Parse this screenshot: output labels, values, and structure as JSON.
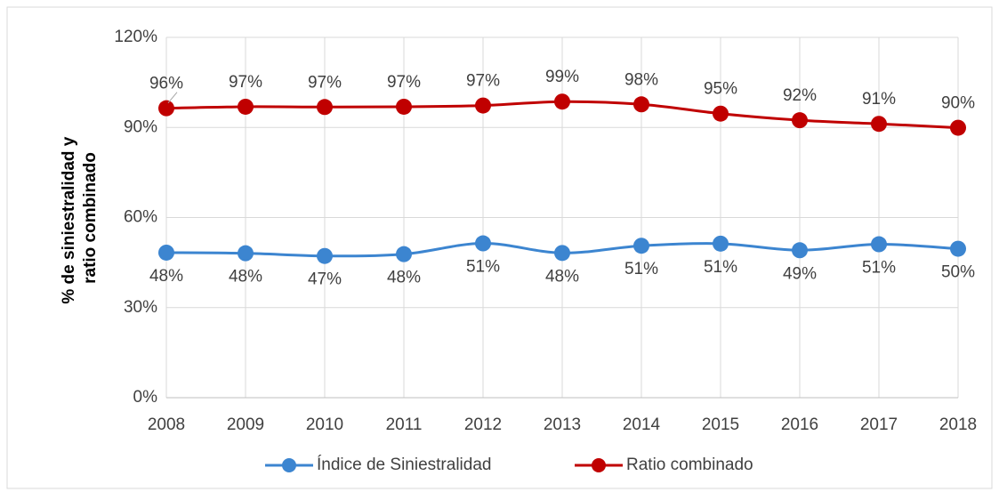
{
  "chart_data": {
    "type": "line",
    "ylabel": [
      "% de siniestralidad y",
      "ratio combinado"
    ],
    "categories": [
      "2008",
      "2009",
      "2010",
      "2011",
      "2012",
      "2013",
      "2014",
      "2015",
      "2016",
      "2017",
      "2018"
    ],
    "series": [
      {
        "name": "Índice de Siniestralidad",
        "color": "#3c85d0",
        "values": [
          48.3,
          48.1,
          47.2,
          47.8,
          51.4,
          48.2,
          50.6,
          51.3,
          49.1,
          51.1,
          49.6
        ],
        "value_labels": [
          "48%",
          "48%",
          "47%",
          "48%",
          "51%",
          "48%",
          "51%",
          "51%",
          "49%",
          "51%",
          "50%"
        ]
      },
      {
        "name": "Ratio combinado",
        "color": "#c00000",
        "values": [
          96.4,
          96.9,
          96.8,
          96.9,
          97.3,
          98.6,
          97.7,
          94.6,
          92.4,
          91.2,
          89.9
        ],
        "value_labels": [
          "96%",
          "97%",
          "97%",
          "97%",
          "97%",
          "99%",
          "98%",
          "95%",
          "92%",
          "91%",
          "90%"
        ]
      }
    ],
    "ylim": [
      0,
      120
    ],
    "yticks": [
      {
        "value": 0,
        "label": "0%"
      },
      {
        "value": 30,
        "label": "30%"
      },
      {
        "value": 60,
        "label": "60%"
      },
      {
        "value": 90,
        "label": "90%"
      },
      {
        "value": 120,
        "label": "120%"
      }
    ],
    "grid": true,
    "legend": "bottom"
  }
}
